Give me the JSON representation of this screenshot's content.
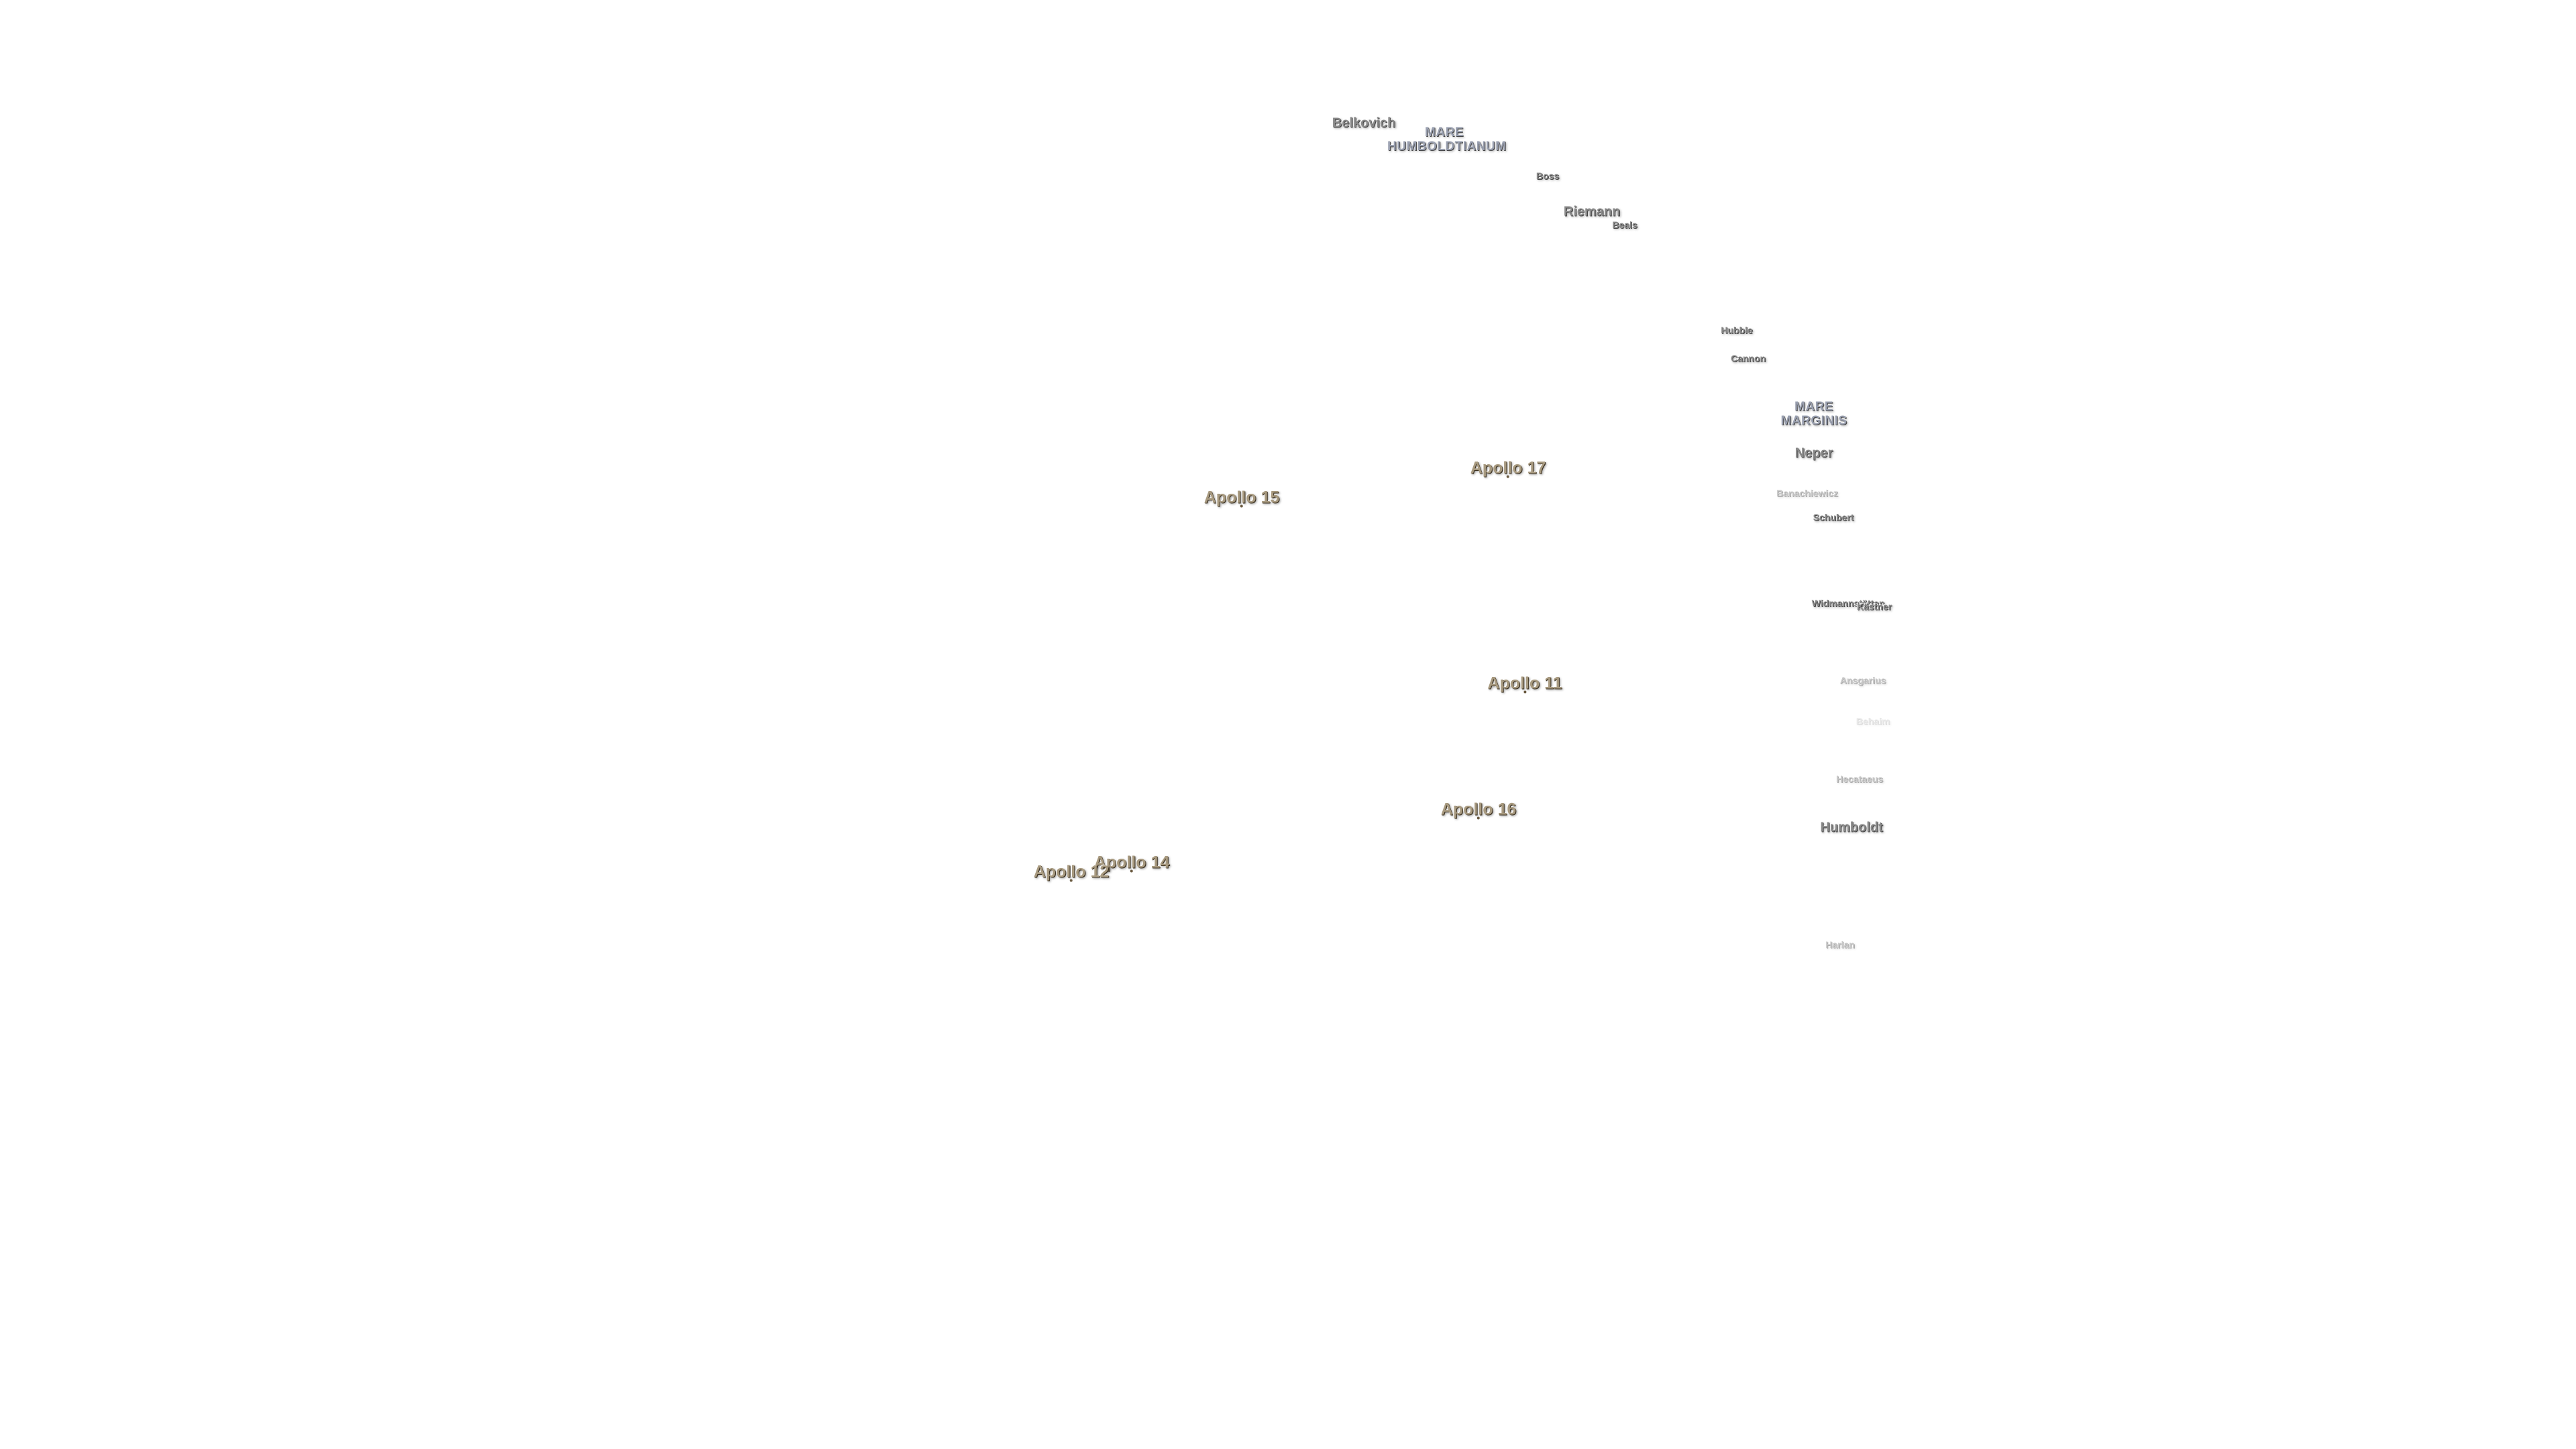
{
  "maria": [
    "MARE HUMBOLDTIANUM",
    "MARE MARGINIS"
  ],
  "craters": [
    "Belkovich",
    "Boss",
    "Riemann",
    "Beals",
    "Hubble",
    "Cannon",
    "Neper",
    "Banachiewicz",
    "Schubert",
    "Widmannstätten",
    "Kästner",
    "Ansgarius",
    "Behaim",
    "Hecataeus",
    "Humboldt",
    "Harlan"
  ],
  "landing_sites": [
    "Apollo 17",
    "Apollo 15",
    "Apollo 11",
    "Apollo 16",
    "Apollo 14",
    "Apollo 12"
  ]
}
